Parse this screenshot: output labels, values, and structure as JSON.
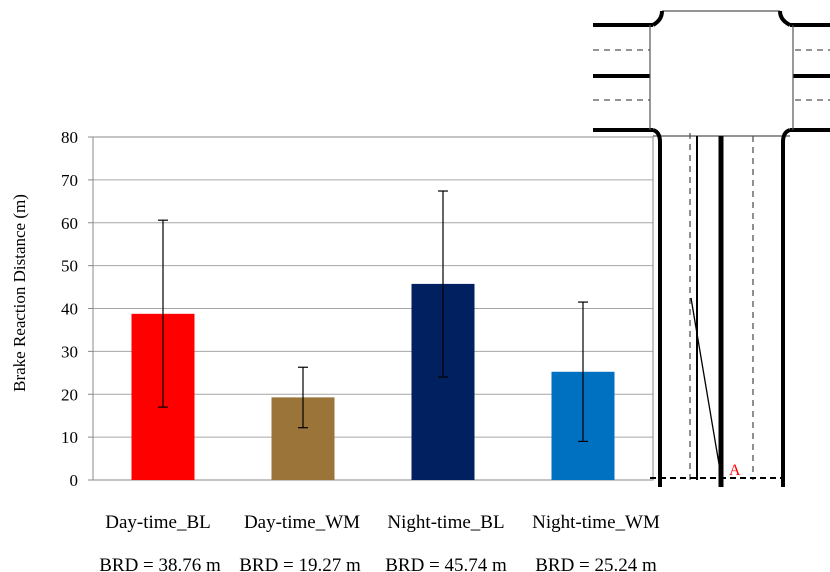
{
  "chart_data": {
    "type": "bar",
    "title": "",
    "xlabel": "",
    "ylabel": "Brake Reaction Distance (m)",
    "ylim": [
      0,
      80
    ],
    "yticks": [
      "0",
      "10",
      "20",
      "30",
      "40",
      "50",
      "60",
      "70",
      "80"
    ],
    "grid": true,
    "categories": [
      "Day-time_BL",
      "Day-time_WM",
      "Night-time_BL",
      "Night-time_WM"
    ],
    "values": [
      38.76,
      19.27,
      45.74,
      25.24
    ],
    "error_low": [
      17.0,
      12.2,
      24.0,
      9.0
    ],
    "error_high": [
      60.6,
      26.3,
      67.4,
      41.5
    ],
    "bar_colors": [
      "#ff0000",
      "#9a7439",
      "#002060",
      "#0070c0"
    ],
    "annotations": [
      "BRD = 38.76 m",
      "BRD = 19.27 m",
      "BRD = 45.74 m",
      "BRD = 25.24 m"
    ]
  },
  "diagram": {
    "marker_label": "A",
    "marker_color": "#ff0000"
  }
}
